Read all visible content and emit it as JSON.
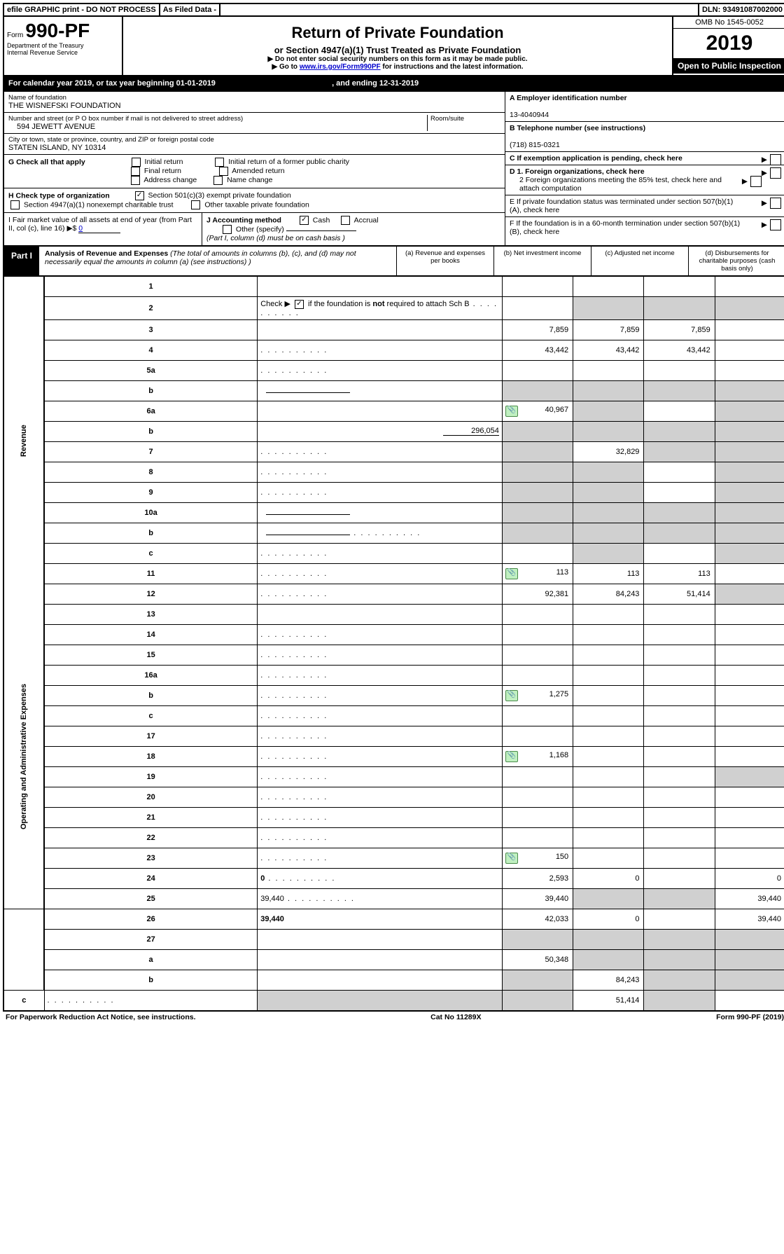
{
  "top": {
    "efile": "efile GRAPHIC print - DO NOT PROCESS",
    "asfiled": "As Filed Data -",
    "dln_label": "DLN:",
    "dln": "93491087002000"
  },
  "header": {
    "form_label": "Form",
    "form_num": "990-PF",
    "dept1": "Department of the Treasury",
    "dept2": "Internal Revenue Service",
    "title": "Return of Private Foundation",
    "sub": "or Section 4947(a)(1) Trust Treated as Private Foundation",
    "note1": "▶ Do not enter social security numbers on this form as it may be made public.",
    "note2_pre": "▶ Go to ",
    "note2_link": "www.irs.gov/Form990PF",
    "note2_post": " for instructions and the latest information.",
    "omb": "OMB No 1545-0052",
    "year": "2019",
    "open": "Open to Public Inspection"
  },
  "cal": {
    "text_pre": "For calendar year 2019, or tax year beginning ",
    "begin": "01-01-2019",
    "mid": " , and ending ",
    "end": "12-31-2019"
  },
  "info": {
    "name_label": "Name of foundation",
    "name": "THE WISNEFSKI FOUNDATION",
    "addr_label": "Number and street (or P O  box number if mail is not delivered to street address)",
    "room_label": "Room/suite",
    "addr": "594 JEWETT AVENUE",
    "city_label": "City or town, state or province, country, and ZIP or foreign postal code",
    "city": "STATEN ISLAND, NY  10314",
    "a_label": "A Employer identification number",
    "a_val": "13-4040944",
    "b_label": "B Telephone number (see instructions)",
    "b_val": "(718) 815-0321",
    "c_label": "C If exemption application is pending, check here",
    "g_label": "G Check all that apply",
    "g_opts": [
      "Initial return",
      "Initial return of a former public charity",
      "Final return",
      "Amended return",
      "Address change",
      "Name change"
    ],
    "h_label": "H Check type of organization",
    "h_opt1": "Section 501(c)(3) exempt private foundation",
    "h_opt2": "Section 4947(a)(1) nonexempt charitable trust",
    "h_opt3": "Other taxable private foundation",
    "d1": "D 1. Foreign organizations, check here",
    "d2": "2 Foreign organizations meeting the 85% test, check here and attach computation",
    "e": "E   If private foundation status was terminated under section 507(b)(1)(A), check here",
    "f": "F   If the foundation is in a 60-month termination under section 507(b)(1)(B), check here",
    "i_label": "I Fair market value of all assets at end of year (from Part II, col  (c), line 16) ▶$ ",
    "i_val": "0",
    "j_label": "J Accounting method",
    "j_cash": "Cash",
    "j_accrual": "Accrual",
    "j_other": "Other (specify)",
    "j_note": "(Part I, column (d) must be on cash basis )"
  },
  "part1": {
    "label": "Part I",
    "title": "Analysis of Revenue and Expenses",
    "note": " (The total of amounts in columns (b), (c), and (d) may not necessarily equal the amounts in column (a) (see instructions) )",
    "col_a": "(a)   Revenue and expenses per books",
    "col_b": "(b) Net investment income",
    "col_c": "(c) Adjusted net income",
    "col_d": "(d) Disbursements for charitable purposes (cash basis only)"
  },
  "side": {
    "revenue": "Revenue",
    "expenses": "Operating and Administrative Expenses"
  },
  "rows": [
    {
      "n": "1",
      "d": "",
      "a": "",
      "b": "",
      "c": ""
    },
    {
      "n": "2",
      "d": "",
      "dots": true,
      "a": "",
      "b": "",
      "c": "",
      "sh": [
        "b",
        "c",
        "d"
      ]
    },
    {
      "n": "3",
      "d": "",
      "a": "7,859",
      "b": "7,859",
      "c": "7,859"
    },
    {
      "n": "4",
      "d": "",
      "dots": true,
      "a": "43,442",
      "b": "43,442",
      "c": "43,442"
    },
    {
      "n": "5a",
      "d": "",
      "dots": true,
      "a": "",
      "b": "",
      "c": ""
    },
    {
      "n": "b",
      "d": "",
      "uline": true,
      "a": "",
      "b": "",
      "c": "",
      "sh": [
        "a",
        "b",
        "c",
        "d"
      ]
    },
    {
      "n": "6a",
      "d": "",
      "clip": true,
      "a": "40,967",
      "b": "",
      "c": "",
      "sh": [
        "b",
        "d"
      ]
    },
    {
      "n": "b",
      "d": "",
      "uval": "296,054",
      "a": "",
      "b": "",
      "c": "",
      "sh": [
        "a",
        "b",
        "c",
        "d"
      ]
    },
    {
      "n": "7",
      "d": "",
      "dots": true,
      "a": "",
      "b": "32,829",
      "c": "",
      "sh": [
        "a",
        "c",
        "d"
      ]
    },
    {
      "n": "8",
      "d": "",
      "dots": true,
      "a": "",
      "b": "",
      "c": "",
      "sh": [
        "a",
        "b",
        "d"
      ]
    },
    {
      "n": "9",
      "d": "",
      "dots": true,
      "a": "",
      "b": "",
      "c": "",
      "sh": [
        "a",
        "b",
        "d"
      ]
    },
    {
      "n": "10a",
      "d": "",
      "uline": true,
      "a": "",
      "b": "",
      "c": "",
      "sh": [
        "a",
        "b",
        "c",
        "d"
      ]
    },
    {
      "n": "b",
      "d": "",
      "dots": true,
      "uline": true,
      "a": "",
      "b": "",
      "c": "",
      "sh": [
        "a",
        "b",
        "c",
        "d"
      ]
    },
    {
      "n": "c",
      "d": "",
      "dots": true,
      "a": "",
      "b": "",
      "c": "",
      "sh": [
        "b",
        "d"
      ]
    },
    {
      "n": "11",
      "d": "",
      "dots": true,
      "clip": true,
      "a": "113",
      "b": "113",
      "c": "113"
    },
    {
      "n": "12",
      "d": "",
      "dots": true,
      "bold": true,
      "a": "92,381",
      "b": "84,243",
      "c": "51,414",
      "sh": [
        "d"
      ]
    },
    {
      "n": "13",
      "d": "",
      "a": "",
      "b": "",
      "c": ""
    },
    {
      "n": "14",
      "d": "",
      "dots": true,
      "a": "",
      "b": "",
      "c": ""
    },
    {
      "n": "15",
      "d": "",
      "dots": true,
      "a": "",
      "b": "",
      "c": ""
    },
    {
      "n": "16a",
      "d": "",
      "dots": true,
      "a": "",
      "b": "",
      "c": ""
    },
    {
      "n": "b",
      "d": "",
      "dots": true,
      "clip": true,
      "a": "1,275",
      "b": "",
      "c": ""
    },
    {
      "n": "c",
      "d": "",
      "dots": true,
      "a": "",
      "b": "",
      "c": ""
    },
    {
      "n": "17",
      "d": "",
      "dots": true,
      "a": "",
      "b": "",
      "c": ""
    },
    {
      "n": "18",
      "d": "",
      "dots": true,
      "clip": true,
      "a": "1,168",
      "b": "",
      "c": ""
    },
    {
      "n": "19",
      "d": "",
      "dots": true,
      "a": "",
      "b": "",
      "c": "",
      "sh": [
        "d"
      ]
    },
    {
      "n": "20",
      "d": "",
      "dots": true,
      "a": "",
      "b": "",
      "c": ""
    },
    {
      "n": "21",
      "d": "",
      "dots": true,
      "a": "",
      "b": "",
      "c": ""
    },
    {
      "n": "22",
      "d": "",
      "dots": true,
      "a": "",
      "b": "",
      "c": ""
    },
    {
      "n": "23",
      "d": "",
      "dots": true,
      "clip": true,
      "a": "150",
      "b": "",
      "c": ""
    },
    {
      "n": "24",
      "d": "0",
      "dots": true,
      "bold": true,
      "a": "2,593",
      "b": "0",
      "c": ""
    },
    {
      "n": "25",
      "d": "39,440",
      "dots": true,
      "a": "39,440",
      "b": "",
      "c": "",
      "sh": [
        "b",
        "c"
      ]
    },
    {
      "n": "26",
      "d": "39,440",
      "bold": true,
      "a": "42,033",
      "b": "0",
      "c": ""
    },
    {
      "n": "27",
      "d": "",
      "a": "",
      "b": "",
      "c": "",
      "sh": [
        "a",
        "b",
        "c",
        "d"
      ]
    },
    {
      "n": "a",
      "d": "",
      "bold": true,
      "a": "50,348",
      "b": "",
      "c": "",
      "sh": [
        "b",
        "c",
        "d"
      ]
    },
    {
      "n": "b",
      "d": "",
      "bold": true,
      "a": "",
      "b": "84,243",
      "c": "",
      "sh": [
        "a",
        "c",
        "d"
      ]
    },
    {
      "n": "c",
      "d": "",
      "dots": true,
      "bold": true,
      "a": "",
      "b": "",
      "c": "51,414",
      "sh": [
        "a",
        "b",
        "d"
      ]
    }
  ],
  "footer": {
    "left": "For Paperwork Reduction Act Notice, see instructions.",
    "mid": "Cat  No  11289X",
    "right": "Form 990-PF (2019)"
  }
}
